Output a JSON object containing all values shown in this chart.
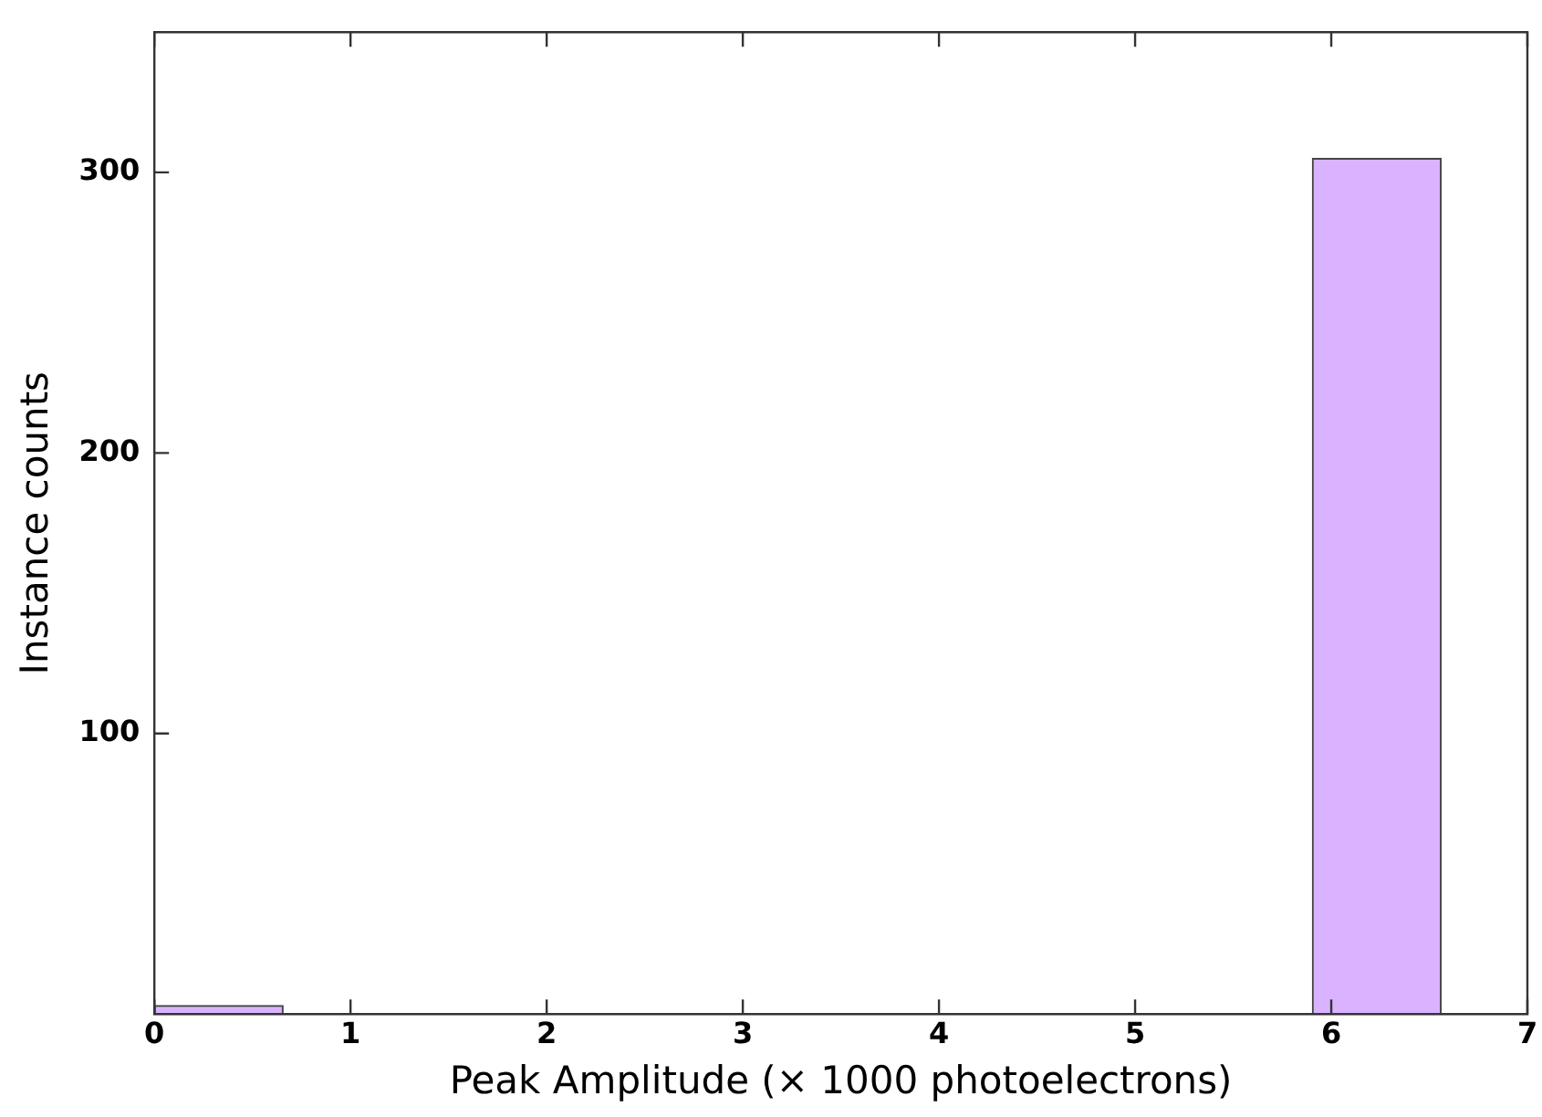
{
  "chart_data": {
    "type": "histogram",
    "xlabel": "Peak Amplitude (× 1000 photoelectrons)",
    "ylabel": "Instance counts",
    "bins": [
      0,
      0.656,
      1.312,
      1.968,
      2.624,
      3.28,
      3.936,
      4.592,
      5.248,
      5.904,
      6.56
    ],
    "values": [
      3,
      0,
      0,
      0,
      0,
      0,
      0,
      0,
      0,
      305
    ],
    "color": "#d9b3ff",
    "xlim": [
      0,
      7
    ],
    "xticks": [
      0,
      1,
      2,
      3,
      4,
      5,
      6,
      7
    ],
    "ylim": [
      0,
      350
    ],
    "yticks": [
      100,
      200,
      300
    ],
    "grid": false,
    "legend": false
  }
}
